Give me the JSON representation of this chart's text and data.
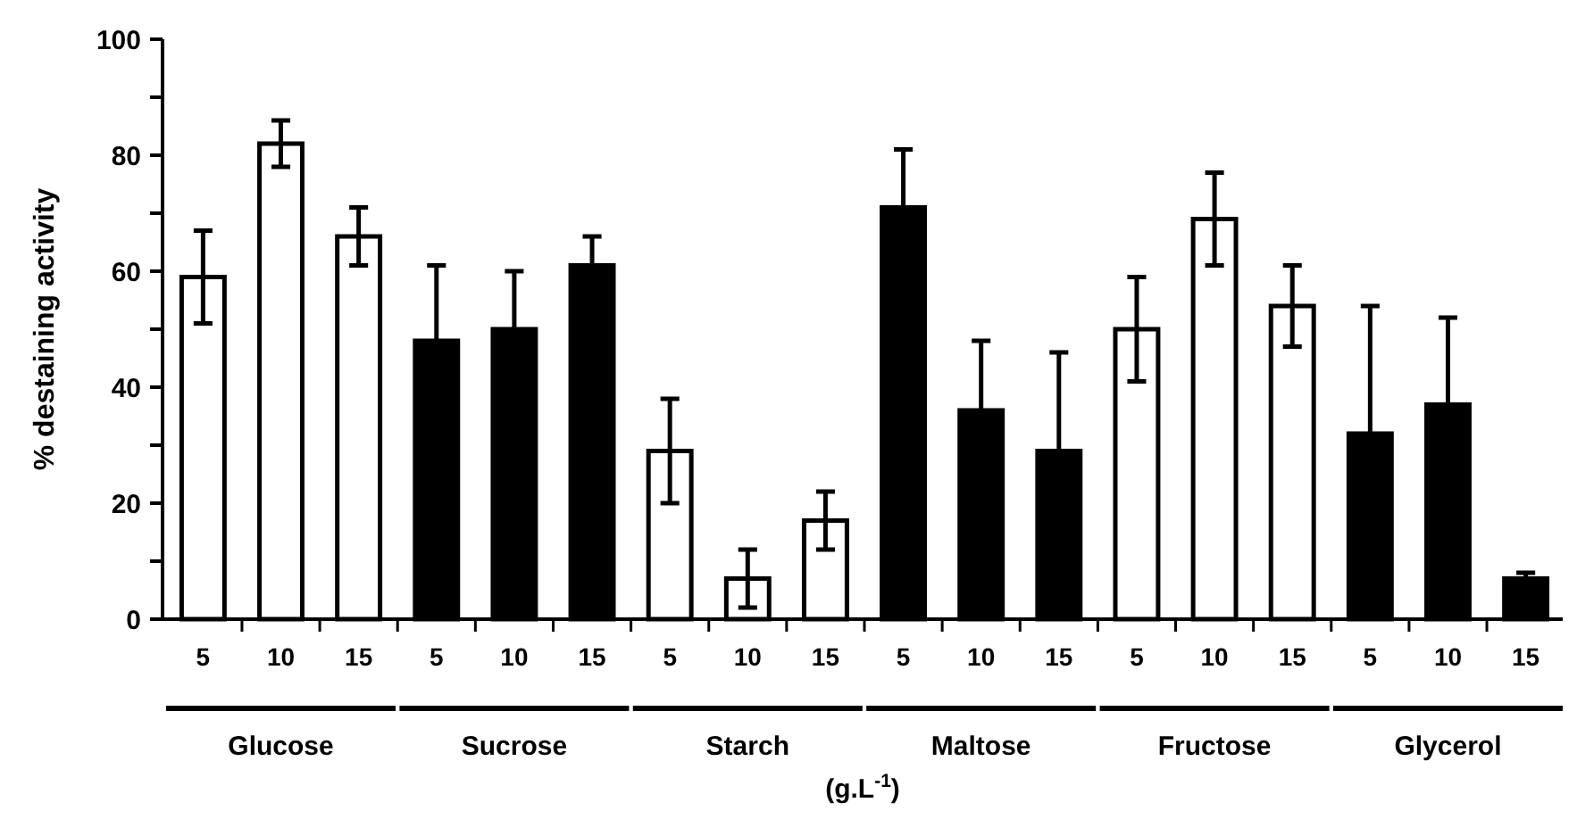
{
  "chart_data": {
    "type": "bar",
    "ylabel": "% destaining activity",
    "xlabel": "(g.L$^{-1}$)",
    "categories": [
      "5",
      "10",
      "15",
      "5",
      "10",
      "15",
      "5",
      "10",
      "15",
      "5",
      "10",
      "15",
      "5",
      "10",
      "15",
      "5",
      "10",
      "15"
    ],
    "values": [
      59,
      82,
      66,
      48,
      50,
      61,
      29,
      7,
      17,
      71,
      36,
      29,
      50,
      69,
      54,
      32,
      37,
      7
    ],
    "errors": [
      8,
      4,
      5,
      13,
      10,
      5,
      9,
      5,
      5,
      10,
      12,
      17,
      9,
      8,
      7,
      22,
      15,
      1
    ],
    "colors": [
      "#ffffff",
      "#ffffff",
      "#ffffff",
      "#000000",
      "#000000",
      "#000000",
      "#ffffff",
      "#ffffff",
      "#ffffff",
      "#000000",
      "#000000",
      "#000000",
      "#ffffff",
      "#ffffff",
      "#ffffff",
      "#000000",
      "#000000",
      "#000000"
    ],
    "annotations": [
      "Glucose",
      "Sucrose",
      "Starch",
      "Maltose",
      "Fructose",
      "Glycerol"
    ],
    "ylim": [
      0,
      100
    ],
    "yticks": [
      0,
      {
        "value": 10,
        "label": null
      },
      20,
      {
        "value": 30,
        "label": null
      },
      40,
      {
        "value": 50,
        "label": null
      },
      60,
      {
        "value": 70,
        "label": null
      },
      80,
      {
        "value": 90,
        "label": null
      },
      100
    ]
  }
}
